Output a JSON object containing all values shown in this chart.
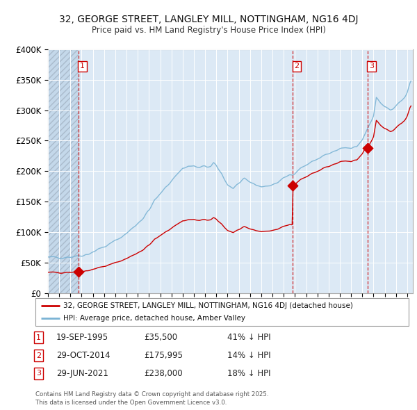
{
  "title_line1": "32, GEORGE STREET, LANGLEY MILL, NOTTINGHAM, NG16 4DJ",
  "title_line2": "Price paid vs. HM Land Registry's House Price Index (HPI)",
  "ylim": [
    0,
    400000
  ],
  "yticks": [
    0,
    50000,
    100000,
    150000,
    200000,
    250000,
    300000,
    350000,
    400000
  ],
  "ytick_labels": [
    "£0",
    "£50K",
    "£100K",
    "£150K",
    "£200K",
    "£250K",
    "£300K",
    "£350K",
    "£400K"
  ],
  "bg_color": "#dce9f5",
  "hatch_color": "#c4d8ea",
  "grid_color": "#ffffff",
  "sale_prices": [
    35500,
    175995,
    238000
  ],
  "sale_labels": [
    "1",
    "2",
    "3"
  ],
  "sale_color": "#cc0000",
  "hpi_color": "#7ab3d4",
  "legend_sale": "32, GEORGE STREET, LANGLEY MILL, NOTTINGHAM, NG16 4DJ (detached house)",
  "legend_hpi": "HPI: Average price, detached house, Amber Valley",
  "footer_line1": "Contains HM Land Registry data © Crown copyright and database right 2025.",
  "footer_line2": "This data is licensed under the Open Government Licence v3.0.",
  "table_rows": [
    [
      "1",
      "19-SEP-1995",
      "£35,500",
      "41% ↓ HPI"
    ],
    [
      "2",
      "29-OCT-2014",
      "£175,995",
      "14% ↓ HPI"
    ],
    [
      "3",
      "29-JUN-2021",
      "£238,000",
      "18% ↓ HPI"
    ]
  ],
  "xlim": [
    1993.0,
    2025.5
  ],
  "hatch_end": 1995.75
}
